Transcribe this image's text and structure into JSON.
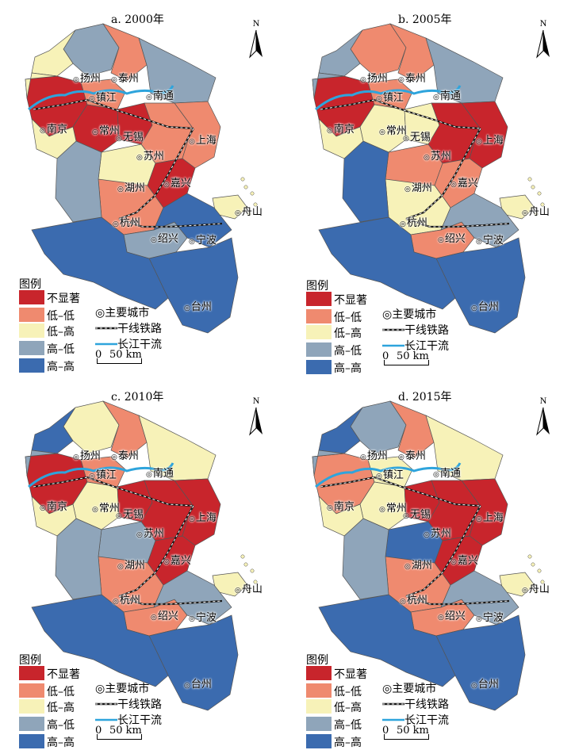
{
  "colors": {
    "不显著": "#c8252c",
    "低-低": "#ef8a6f",
    "低-高": "#f7f2b8",
    "高-低": "#8fa5ba",
    "高-高": "#3b6baf",
    "river": "#2ea4dc",
    "railway": "#1a1a1a"
  },
  "north_label": "N",
  "cities": {
    "yangzhou": "扬州",
    "taizhou_js": "泰州",
    "nantong": "南通",
    "zhenjiang": "镇江",
    "nanjing": "南京",
    "changzhou": "常州",
    "wuxi": "无锡",
    "suzhou": "苏州",
    "shanghai": "上海",
    "huzhou": "湖州",
    "jiaxing": "嘉兴",
    "hangzhou": "杭州",
    "zhoushan": "舟山",
    "shaoxing": "绍兴",
    "ningbo": "宁波",
    "taizhou_zj": "台州"
  },
  "legend": {
    "title": "图例",
    "classes": [
      {
        "label": "不显著",
        "key": "不显著"
      },
      {
        "label": "低–低",
        "key": "低-低"
      },
      {
        "label": "低–高",
        "key": "低-高"
      },
      {
        "label": "高–低",
        "key": "高-低"
      },
      {
        "label": "高–高",
        "key": "高-高"
      }
    ],
    "city_symbol": "◎主要城市",
    "railway": "干线铁路",
    "river": "长江干流",
    "scale_zero": "0",
    "scale_value": "50 km"
  },
  "panels": [
    {
      "title": "a. 2000年",
      "regions": {
        "yz": "高-低",
        "tzj": "低-低",
        "nt": "高-低",
        "nj": "不显著",
        "zj": "低-低",
        "cz": "不显著",
        "wx": "不显著",
        "sz": "低-低",
        "sh": "低-低",
        "hz": "低-高",
        "jx": "不显著",
        "hgz": "低-低",
        "zs": "低-高",
        "sx": "高-低",
        "nb": "高-高",
        "tz": "高-高",
        "w1": "低-高",
        "w2": "高-高",
        "w3": "高-低",
        "w4": "低-高",
        "w5": "低-高"
      }
    },
    {
      "title": "b. 2005年",
      "regions": {
        "yz": "低-低",
        "tzj": "低-低",
        "nt": "高-低",
        "nj": "不显著",
        "zj": "低-低",
        "cz": "低-高",
        "wx": "低-高",
        "sz": "不显著",
        "sh": "不显著",
        "hz": "低-低",
        "jx": "低-低",
        "hgz": "低-高",
        "zs": "低-高",
        "sx": "低-低",
        "nb": "高-低",
        "tz": "高-高",
        "w1": "高-低",
        "w2": "高-高",
        "w3": "高-高",
        "w4": "低-高",
        "w5": "高-低"
      }
    },
    {
      "title": "c. 2010年",
      "regions": {
        "yz": "低-高",
        "tzj": "低-低",
        "nt": "低-高",
        "nj": "不显著",
        "zj": "低-低",
        "cz": "低-高",
        "wx": "不显著",
        "sz": "不显著",
        "sh": "不显著",
        "hz": "高-低",
        "jx": "不显著",
        "hgz": "低-低",
        "zs": "低-高",
        "sx": "低-低",
        "nb": "高-低",
        "tz": "高-高",
        "w1": "高-高",
        "w2": "高-高",
        "w3": "高-低",
        "w4": "低-高",
        "w5": "高-低"
      }
    },
    {
      "title": "d. 2015年",
      "regions": {
        "yz": "高-低",
        "tzj": "低-低",
        "nt": "低-高",
        "nj": "低-低",
        "zj": "低-高",
        "cz": "低-高",
        "wx": "不显著",
        "sz": "不显著",
        "sh": "不显著",
        "hz": "高-高",
        "jx": "不显著",
        "hgz": "低-低",
        "zs": "低-高",
        "sx": "低-低",
        "nb": "高-低",
        "tz": "高-高",
        "w1": "高-高",
        "w2": "高-高",
        "w3": "高-低",
        "w4": "低-高",
        "w5": "高-低"
      }
    }
  ]
}
